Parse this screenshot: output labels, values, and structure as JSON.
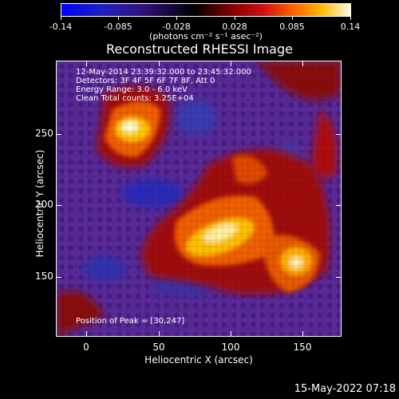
{
  "colorbar": {
    "tick_labels": [
      "-0.14",
      "-0.085",
      "-0.028",
      "0.028",
      "0.085",
      "0.14"
    ],
    "unit": "(photons cm⁻² s⁻¹ asec⁻²)"
  },
  "title": "Reconstructed RHESSI Image",
  "info": {
    "time": "12-May-2014 23:39:32.000 to 23:45:32.000",
    "detectors": "Detectors: 3F 4F 5F 6F 7F 8F, Att 0",
    "energy": "Energy Range: 3.0 - 6.0 keV",
    "method": "Clean      Total counts: 3.25E+04",
    "peak": "Position of Peak = [30,247]"
  },
  "axes": {
    "xlabel": "Heliocentric X (arcsec)",
    "ylabel": "Heliocentric Y (arcsec)",
    "xticks": [
      "0",
      "50",
      "100",
      "150"
    ],
    "yticks": [
      "250",
      "200",
      "150"
    ]
  },
  "footer": {
    "timestamp": "15-May-2022 07:18"
  },
  "colors": {
    "background": "#000000",
    "low": "#5a2a9a",
    "high": "#ffffe0"
  }
}
